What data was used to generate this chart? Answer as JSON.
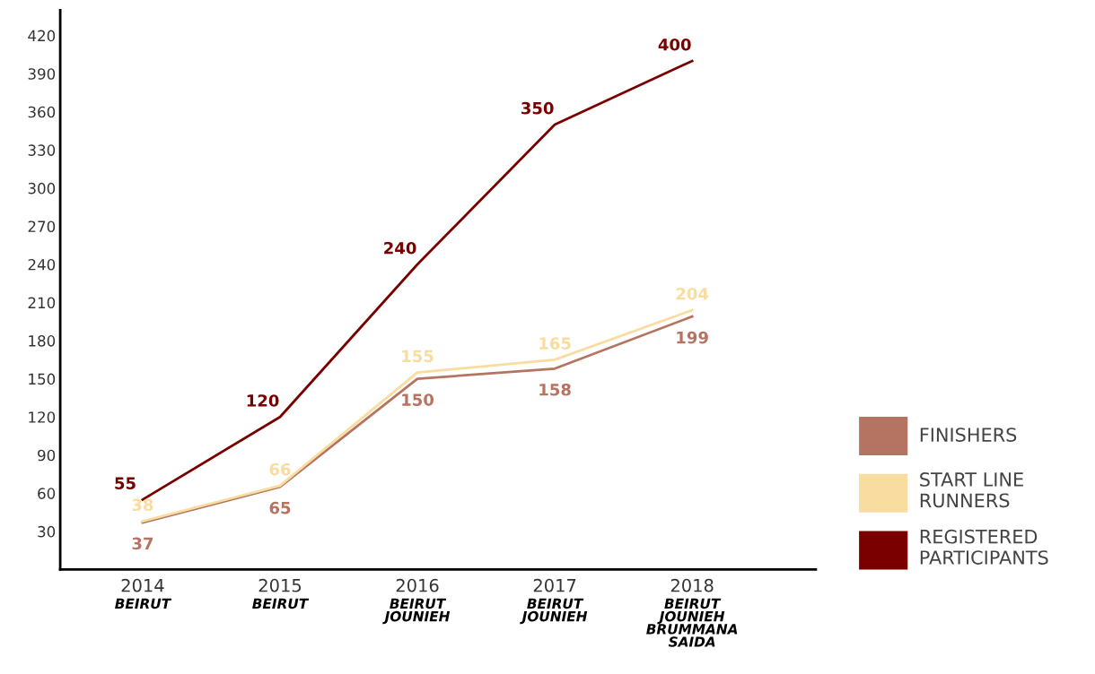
{
  "chart_data": {
    "type": "line",
    "categories": [
      "2014\nBEIRUT",
      "2015\nBEIRUT",
      "2016\nBEIRUT\nJOUNIEH",
      "2017\nBEIRUT\nJOUNIEH",
      "2018\nBEIRUT\nJOUNIEH\nBRUMMANA\nSAIDA"
    ],
    "series": [
      {
        "name": "FINISHERS",
        "color": "#b57462",
        "values": [
          37,
          65,
          150,
          158,
          199
        ]
      },
      {
        "name": "START LINE\nRUNNERS",
        "color": "#f8dca0",
        "values": [
          38,
          66,
          155,
          165,
          204
        ]
      },
      {
        "name": "REGISTERED\nPARTICIPANTS",
        "color": "#7a0000",
        "values": [
          55,
          120,
          240,
          350,
          400
        ]
      }
    ],
    "ylim": [
      0,
      440
    ],
    "yticks": [
      30,
      60,
      90,
      120,
      150,
      180,
      210,
      240,
      270,
      300,
      330,
      360,
      390,
      420
    ],
    "data_labels": true,
    "grid": false,
    "legend": "right",
    "marker": "none",
    "line_style": "solid"
  }
}
